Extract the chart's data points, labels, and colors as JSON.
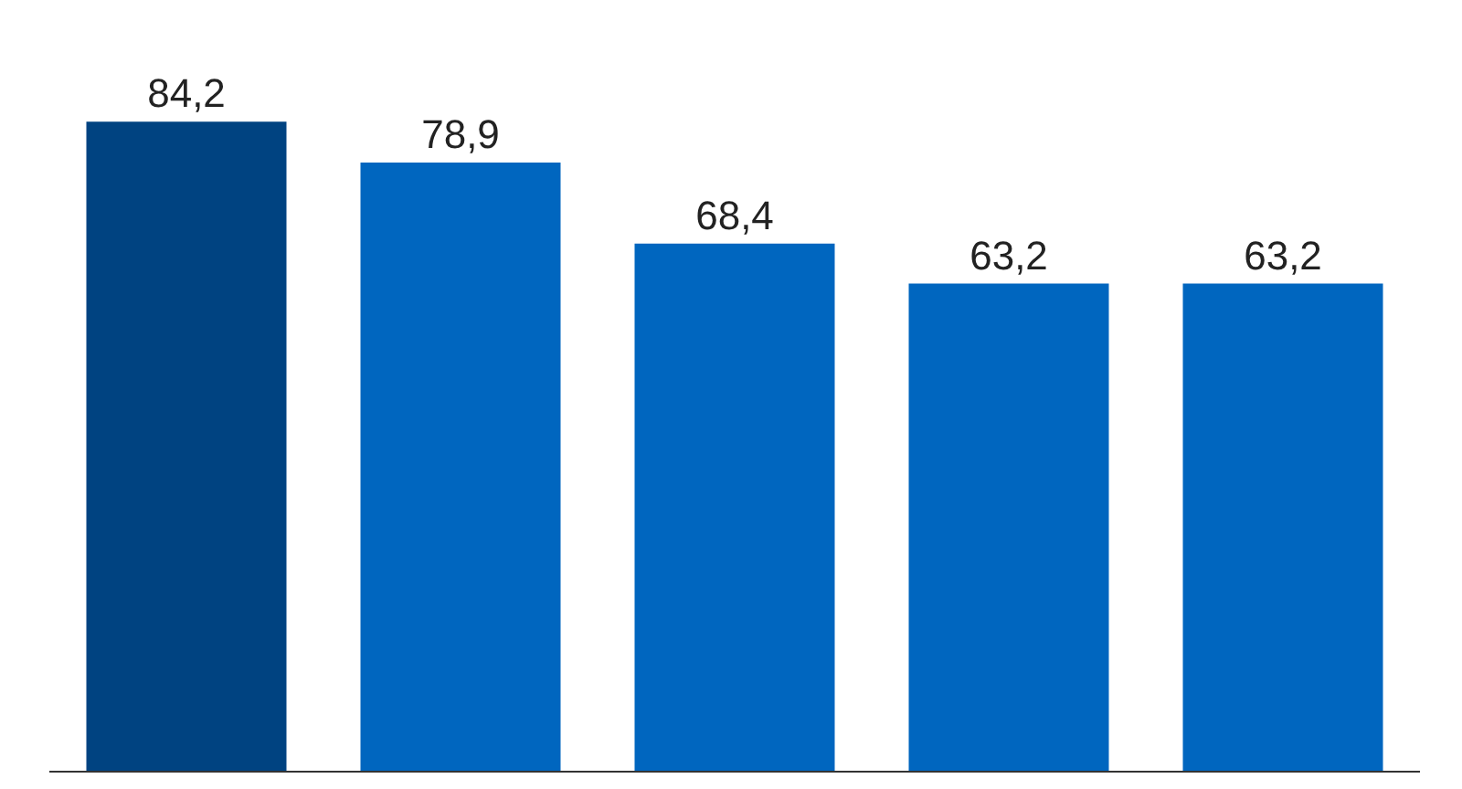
{
  "chart_data": {
    "type": "bar",
    "categories": [
      null,
      null,
      null,
      null,
      null
    ],
    "values": [
      84.2,
      78.9,
      68.4,
      63.2,
      63.2
    ],
    "value_labels": [
      "84,2",
      "78,9",
      "68,4",
      "63,2",
      "63,2"
    ],
    "colors": [
      "#004381",
      "#0066bf",
      "#0066bf",
      "#0066bf",
      "#0066bf"
    ],
    "ylim": [
      0,
      100
    ],
    "tick_labels": false
  }
}
